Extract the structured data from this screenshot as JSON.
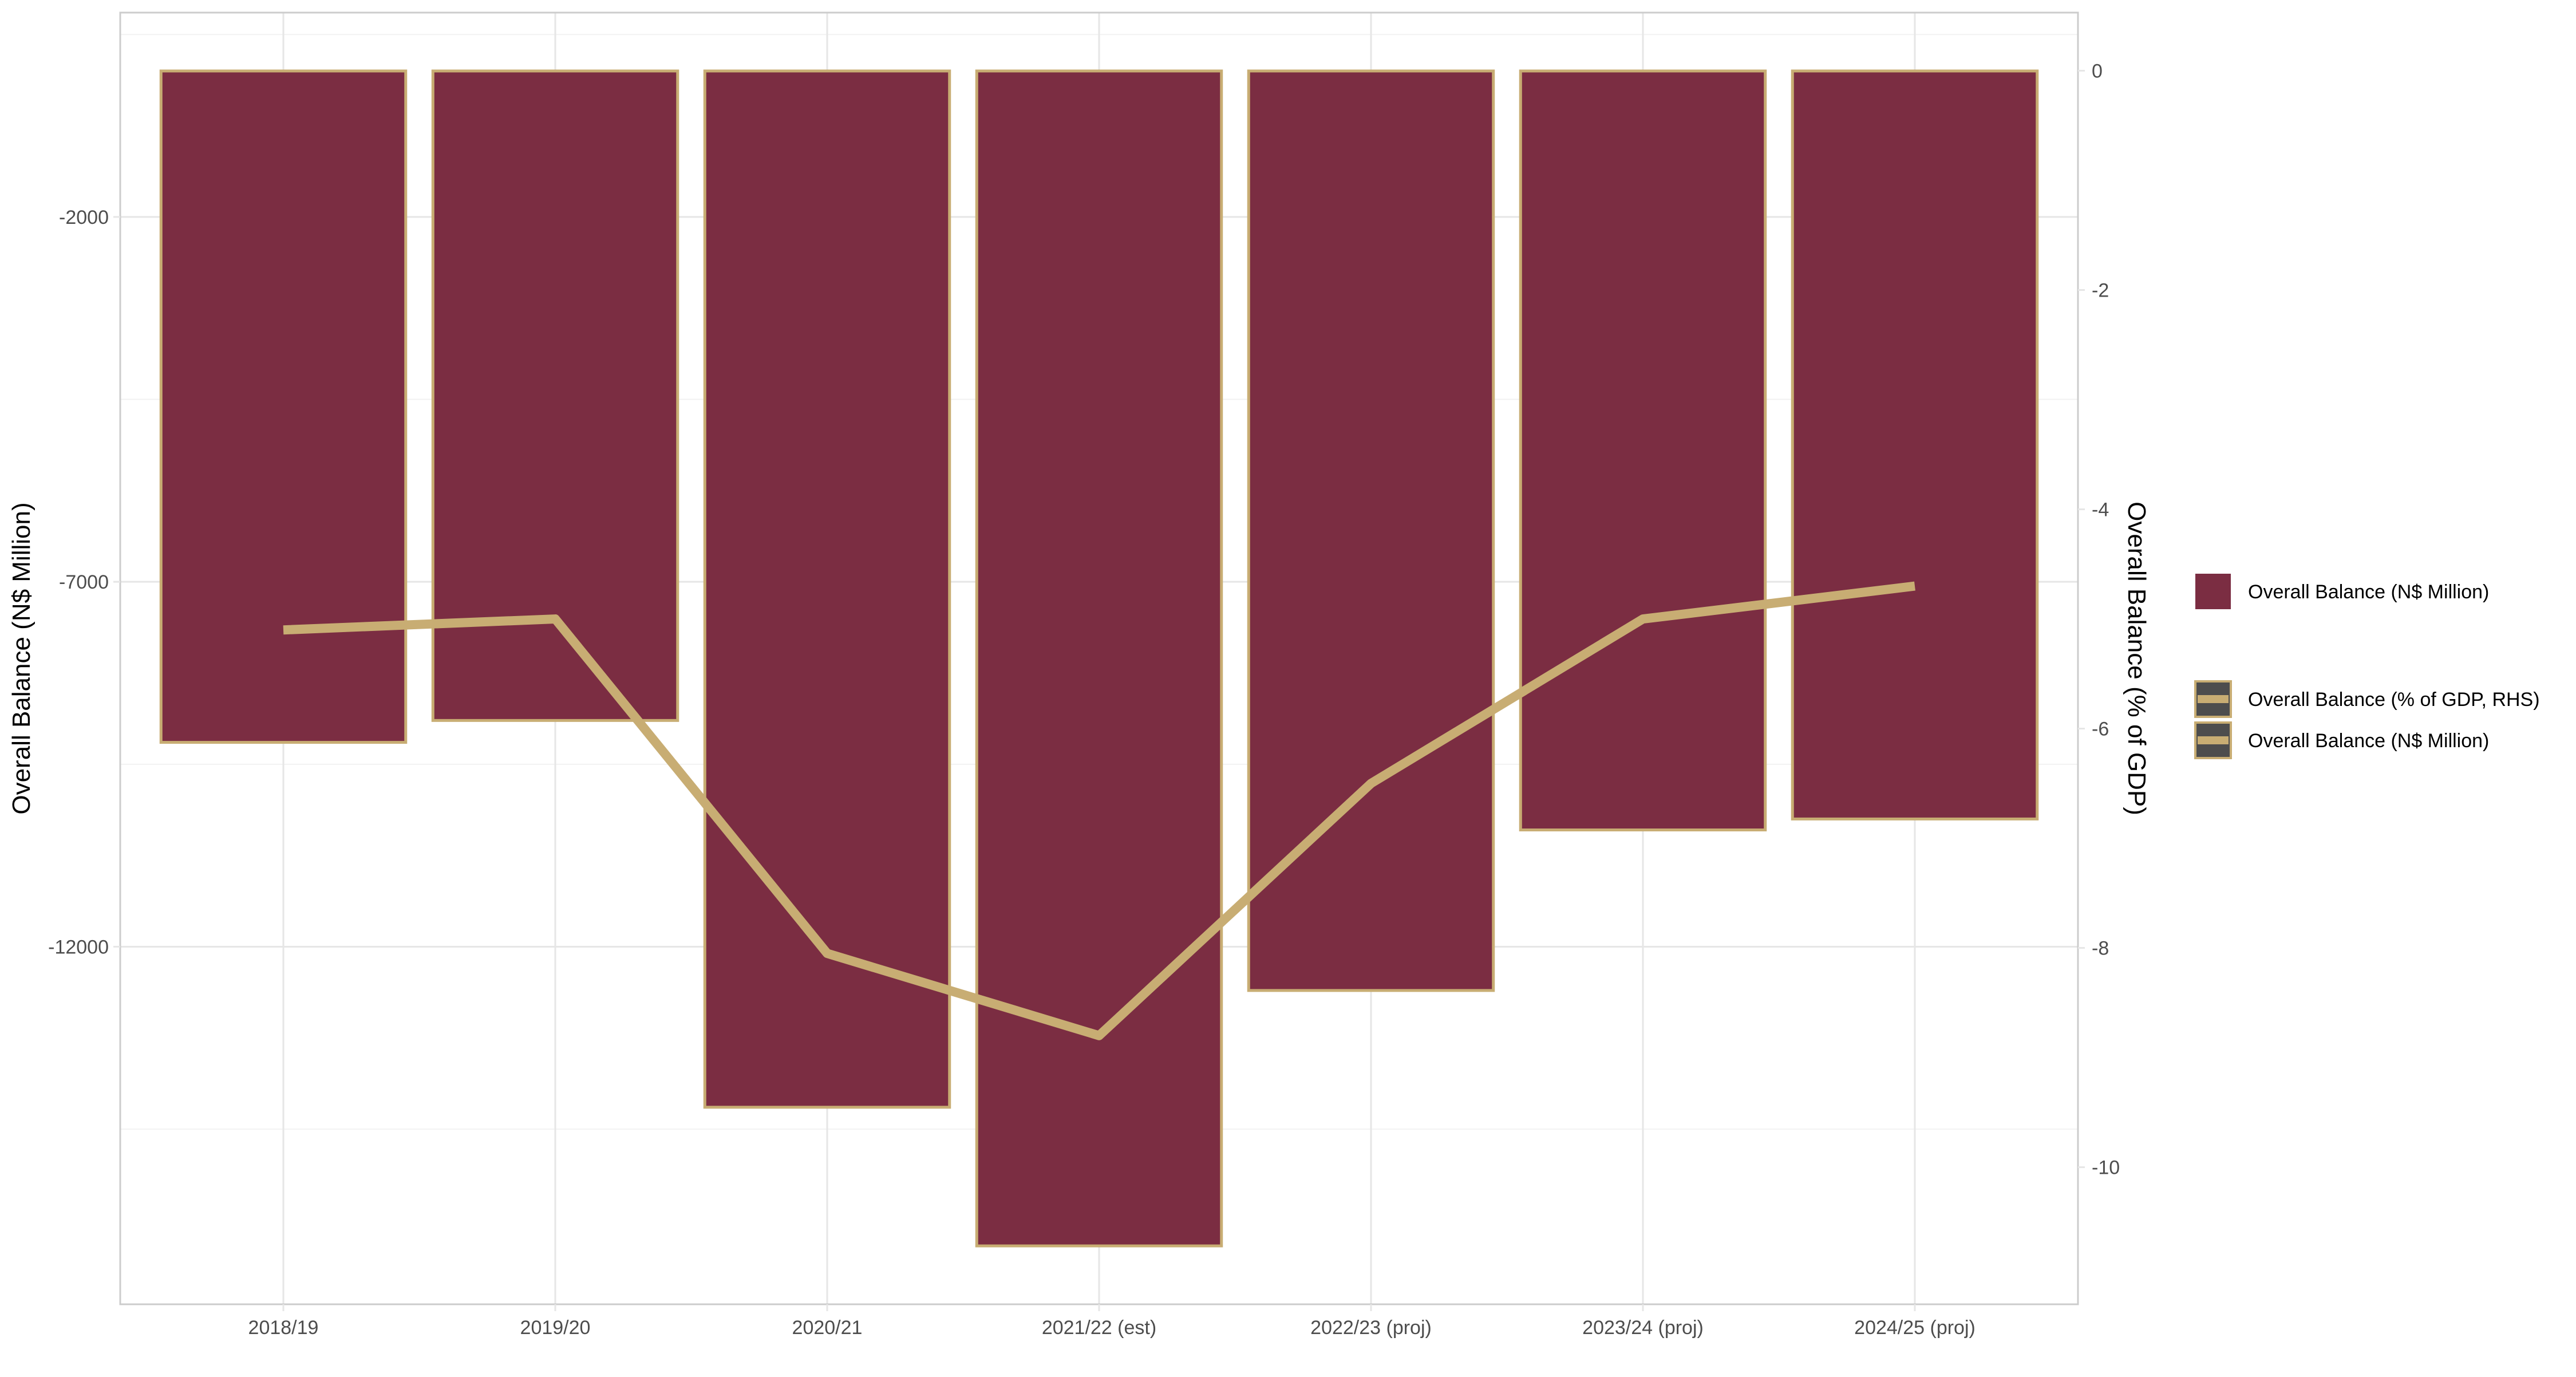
{
  "chart_data": {
    "type": "bar",
    "categories": [
      "2018/19",
      "2019/20",
      "2020/21",
      "2021/22 (est)",
      "2022/23 (proj)",
      "2023/24 (proj)",
      "2024/25 (proj)"
    ],
    "series": [
      {
        "name": "Overall Balance (N$ Million)",
        "type": "bar",
        "axis": "left",
        "values": [
          -9200,
          -8900,
          -14200,
          -16100,
          -12600,
          -10400,
          -10250
        ]
      },
      {
        "name": "Overall Balance (% of GDP, RHS)",
        "type": "line",
        "axis": "right",
        "values": [
          -5.1,
          -5.0,
          -8.05,
          -8.8,
          -6.5,
          -5.0,
          -4.7
        ]
      }
    ],
    "title": "",
    "xlabel": "",
    "ylabel": "Overall Balance (N$ Million)",
    "y2label": "Overall Balance (% of GDP)",
    "ylim": [
      -16900,
      800
    ],
    "y2lim": [
      -11.25,
      0.53
    ],
    "yticks": [
      -2000,
      -7000,
      -12000
    ],
    "y2ticks": [
      0,
      -2,
      -4,
      -6,
      -8,
      -10
    ],
    "grid": true,
    "legend_position": "right",
    "legend": [
      {
        "label": "Overall Balance (N$ Million)",
        "key": "bar"
      },
      {
        "label": "Overall Balance (% of GDP, RHS)",
        "key": "line"
      },
      {
        "label": "Overall Balance (N$ Million)",
        "key": "line"
      }
    ],
    "colors": {
      "bar_fill": "#7B2D42",
      "bar_outline": "#C8AD73",
      "line": "#C8AD73",
      "grid_major": "#E6E6E6",
      "grid_minor": "#F2F2F2",
      "panel_border": "#CCCCCC",
      "legend_key_fill": "#4D4D4D",
      "axis_text": "#4D4D4D",
      "axis_title": "#000000"
    }
  }
}
